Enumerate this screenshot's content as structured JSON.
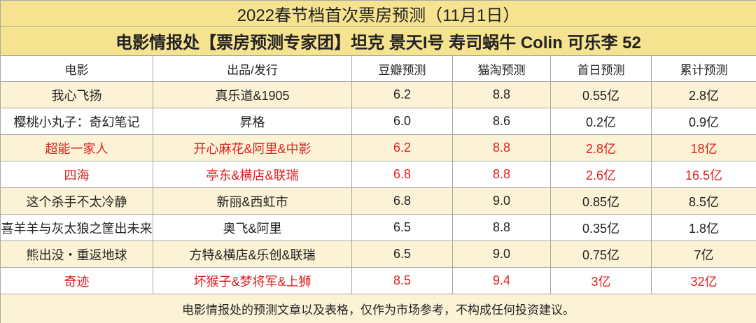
{
  "header": {
    "title": "2022春节档首次票房预测（11月1日）",
    "subtitle": "电影情报处【票房预测专家团】坦克 景天I号 寿司蜗牛 Colin 可乐李 52"
  },
  "table": {
    "columns": [
      "电影",
      "出品/发行",
      "豆瓣预测",
      "猫淘预测",
      "首日预测",
      "累计预测"
    ],
    "rows": [
      [
        "我心飞扬",
        "真乐道&1905",
        "6.2",
        "8.8",
        "0.55亿",
        "2.8亿"
      ],
      [
        "樱桃小丸子：奇幻笔记",
        "昇格",
        "6.0",
        "8.6",
        "0.2亿",
        "0.9亿"
      ],
      [
        "超能一家人",
        "开心麻花&阿里&中影",
        "6.2",
        "8.8",
        "2.8亿",
        "18亿"
      ],
      [
        "四海",
        "亭东&横店&联瑞",
        "6.8",
        "8.8",
        "2.6亿",
        "16.5亿"
      ],
      [
        "这个杀手不太冷静",
        "新丽&西虹市",
        "6.8",
        "9.0",
        "0.85亿",
        "8.5亿"
      ],
      [
        "喜羊羊与灰太狼之筐出未来",
        "奥飞&阿里",
        "6.5",
        "8.8",
        "0.35亿",
        "1.8亿"
      ],
      [
        "熊出没・重返地球",
        "方特&横店&乐创&联瑞",
        "6.5",
        "9.0",
        "0.75亿",
        "7亿"
      ],
      [
        "奇迹",
        "坏猴子&梦将军&上狮",
        "8.5",
        "9.4",
        "3亿",
        "32亿"
      ]
    ]
  },
  "footer": "电影情报处的预测文章以及表格，仅作为市场参考，不构成任何投资建议。"
}
